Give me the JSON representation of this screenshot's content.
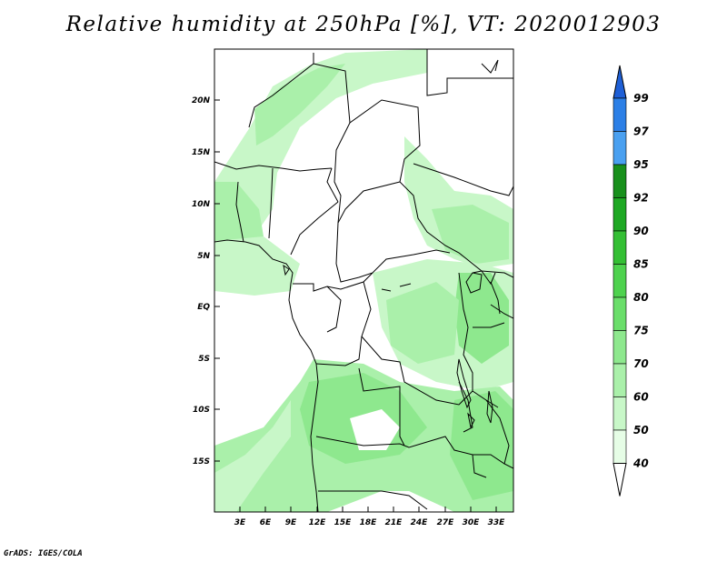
{
  "title": "Relative humidity at 250hPa [%], VT: 2020012903",
  "footer": "GrADS: IGES/COLA",
  "map": {
    "lon_range": [
      0,
      35
    ],
    "lat_range": [
      -20,
      25
    ],
    "lat_ticks": [
      "20N",
      "15N",
      "10N",
      "5N",
      "EQ",
      "5S",
      "10S",
      "15S"
    ],
    "lon_ticks": [
      "3E",
      "6E",
      "9E",
      "12E",
      "15E",
      "18E",
      "21E",
      "24E",
      "27E",
      "30E",
      "33E"
    ]
  },
  "colorbar": {
    "levels": [
      "99",
      "97",
      "95",
      "92",
      "90",
      "85",
      "80",
      "75",
      "70",
      "60",
      "50",
      "40"
    ],
    "colors": [
      "#1e5fd6",
      "#2c7fe6",
      "#4aa0f0",
      "#18901c",
      "#1ea823",
      "#34bf34",
      "#4ed24e",
      "#6ade6a",
      "#8ee88e",
      "#aaf0aa",
      "#c8f7c8",
      "#e6fde6"
    ]
  }
}
